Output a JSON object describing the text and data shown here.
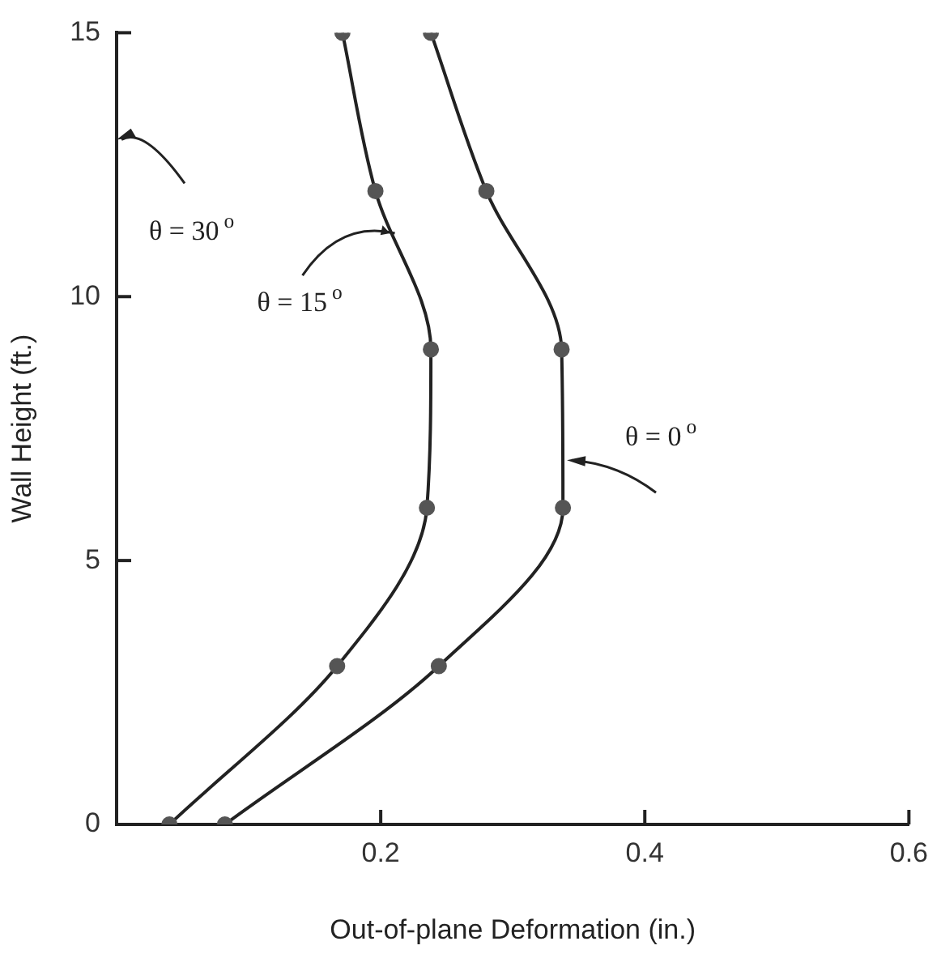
{
  "chart_data": {
    "type": "line",
    "xlabel": "Out-of-plane Deformation (in.)",
    "ylabel": "Wall Height (ft.)",
    "series": [
      {
        "color": "#222222",
        "x": [
          0.04,
          0.167,
          0.235,
          0.238,
          0.196,
          0.171
        ],
        "values": [
          0,
          3,
          6,
          9,
          12,
          15
        ]
      },
      {
        "color": "#222222",
        "x": [
          0.082,
          0.244,
          0.338,
          0.337,
          0.28,
          0.238
        ],
        "values": [
          0,
          3,
          6,
          9,
          12,
          15
        ]
      }
    ],
    "annotations": [
      "θ = 30$^{o}$",
      {
        "text": "θ = 15$^{o}$",
        "x": 0.207,
        "y": 11.2
      },
      {
        "text": "θ = 0$^{o}$",
        "x": 0.341,
        "y": 6.9
      }
    ],
    "xlim": [
      0,
      0.6
    ],
    "xticks": [
      0.2,
      0.4,
      0.6
    ],
    "ylim": [
      0,
      15
    ],
    "yticks": [
      0,
      5,
      10,
      15
    ],
    "grid": false,
    "legend": false,
    "marker": "circle",
    "line_style": "solid"
  }
}
